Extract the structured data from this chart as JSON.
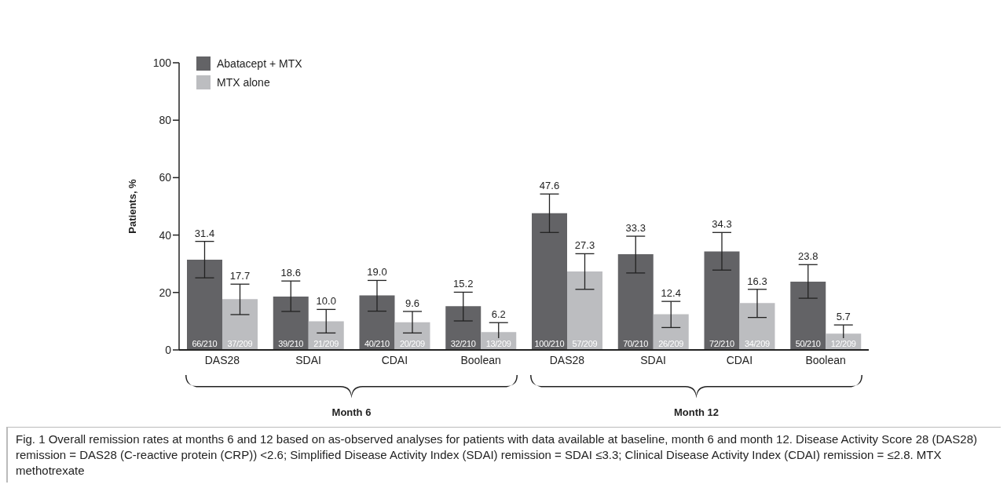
{
  "chart_data": {
    "type": "bar",
    "ylabel": "Patients, %",
    "categories": [
      "DAS28",
      "SDAI",
      "CDAI",
      "Boolean",
      "DAS28",
      "SDAI",
      "CDAI",
      "Boolean"
    ],
    "series": [
      {
        "name": "Abatacept + MTX",
        "color": "#636366",
        "values": [
          31.4,
          18.6,
          19.0,
          15.2,
          47.6,
          33.3,
          34.3,
          23.8
        ],
        "value_labels": [
          "31.4",
          "18.6",
          "19.0",
          "15.2",
          "47.6",
          "33.3",
          "34.3",
          "23.8"
        ],
        "errors": [
          [
            25.1,
            37.8
          ],
          [
            13.4,
            24.0
          ],
          [
            13.5,
            24.2
          ],
          [
            10.1,
            20.1
          ],
          [
            40.9,
            54.3
          ],
          [
            26.8,
            39.6
          ],
          [
            27.8,
            40.9
          ],
          [
            18.0,
            29.7
          ]
        ]
      },
      {
        "name": "MTX alone",
        "color": "#bcbdc0",
        "values": [
          17.7,
          10.0,
          9.6,
          6.2,
          27.3,
          12.4,
          16.3,
          5.7
        ],
        "value_labels": [
          "17.7",
          "10.0",
          "9.6",
          "6.2",
          "27.3",
          "12.4",
          "16.3",
          "5.7"
        ],
        "errors": [
          [
            12.3,
            22.9
          ],
          [
            5.9,
            14.1
          ],
          [
            5.9,
            13.4
          ],
          [
            2.8,
            9.5
          ],
          [
            21.1,
            33.5
          ],
          [
            7.8,
            16.9
          ],
          [
            11.3,
            21.1
          ],
          [
            2.4,
            8.7
          ]
        ]
      }
    ],
    "ylim": [
      0,
      100
    ],
    "yticks": [
      0,
      20,
      40,
      60,
      80,
      100
    ],
    "legend": "top left",
    "annotations": [
      "66/210",
      "37/209",
      "39/210",
      "21/209",
      "40/210",
      "20/209",
      "32/210",
      "13/209",
      "100/210",
      "57/209",
      "70/210",
      "26/209",
      "72/210",
      "34/209",
      "50/210",
      "12/209",
      "Month 6",
      "Month 12",
      "Fig. 1 Overall remission rates at months 6 and 12 based on as-observed analyses for patients with data available at baseline, month 6 and month 12. Disease Activity Score 28 (DAS28) remission = DAS28 (C-reactive protein (CRP)) <2.6; Simplified Disease Activity Index (SDAI) remission = SDAI ≤3.3; Clinical Disease Activity Index (CDAI) remission = ≤2.8. MTX methotrexate"
    ]
  }
}
